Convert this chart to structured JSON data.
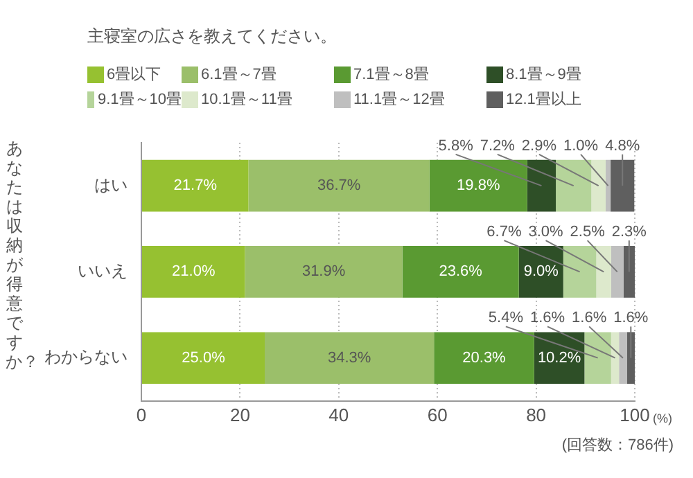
{
  "chart_data": {
    "type": "bar",
    "orientation": "horizontal",
    "stacked": true,
    "title": "主寝室の広さを教えてください。",
    "ylabel": "あなたは収納が得意ですか？",
    "xlabel": "(%)",
    "annotations": [
      "(回答数：786件)"
    ],
    "categories": [
      "はい",
      "いいえ",
      "わからない"
    ],
    "series": [
      {
        "name": "6畳以下",
        "color": "#96c131",
        "values": [
          21.7,
          21.0,
          25.0
        ],
        "value_labels": [
          "21.7%",
          "21.0%",
          "25.0%"
        ]
      },
      {
        "name": "6.1畳～7畳",
        "color": "#9bbf6a",
        "values": [
          36.7,
          31.9,
          34.3
        ],
        "value_labels": [
          "36.7%",
          "31.9%",
          "34.3%"
        ]
      },
      {
        "name": "7.1畳～8畳",
        "color": "#5a9a32",
        "values": [
          19.8,
          23.6,
          20.3
        ],
        "value_labels": [
          "19.8%",
          "23.6%",
          "20.3%"
        ]
      },
      {
        "name": "8.1畳～9畳",
        "color": "#2e4f27",
        "values": [
          5.8,
          9.0,
          10.2
        ],
        "value_labels": [
          "5.8%",
          "9.0%",
          "10.2%"
        ]
      },
      {
        "name": "9.1畳～10畳",
        "color": "#b5d49a",
        "values": [
          7.2,
          6.7,
          5.4
        ],
        "value_labels": [
          "7.2%",
          "6.7%",
          "5.4%"
        ]
      },
      {
        "name": "10.1畳～11畳",
        "color": "#dde9cc",
        "values": [
          2.9,
          3.0,
          1.6
        ],
        "value_labels": [
          "2.9%",
          "3.0%",
          "1.6%"
        ]
      },
      {
        "name": "11.1畳～12畳",
        "color": "#bfbfbf",
        "values": [
          1.0,
          2.5,
          1.6
        ],
        "value_labels": [
          "1.0%",
          "2.5%",
          "1.6%"
        ]
      },
      {
        "name": "12.1畳以上",
        "color": "#5f5f5f",
        "values": [
          4.8,
          2.3,
          1.6
        ],
        "value_labels": [
          "4.8%",
          "2.3%",
          "1.6%"
        ]
      }
    ],
    "xlim": [
      0,
      100
    ],
    "xticks": [
      0,
      20,
      40,
      60,
      80,
      {
        "value": 100,
        "label": "100"
      }
    ],
    "grid": "x",
    "legend": "top left"
  }
}
